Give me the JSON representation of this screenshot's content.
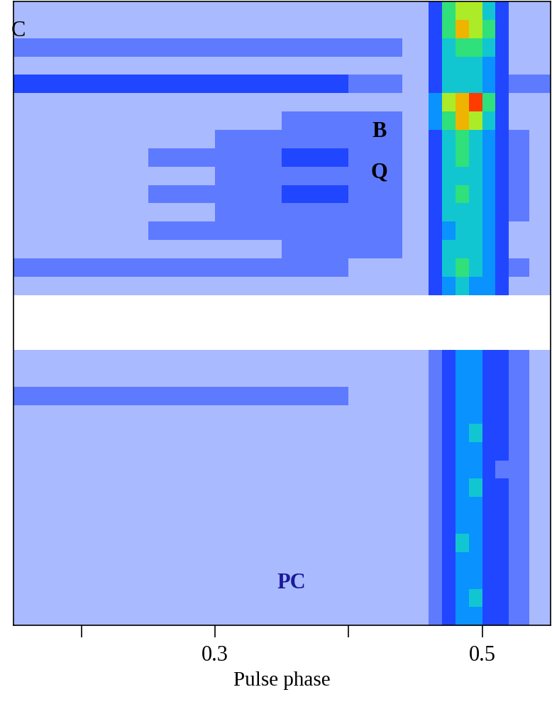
{
  "chart_data": {
    "type": "heatmap",
    "x_label": "Pulse phase",
    "xlim": [
      0.149,
      0.551
    ],
    "xticks": [
      {
        "value": 0.2,
        "label": null
      },
      0.3,
      {
        "value": 0.4,
        "label": null
      },
      0.5
    ],
    "tick_labels": "x",
    "annotations": [
      "C",
      "B",
      "Q",
      "PC"
    ],
    "phase_edges": [
      0.149,
      0.2,
      0.25,
      0.3,
      0.35,
      0.4,
      0.44,
      0.46,
      0.47,
      0.48,
      0.49,
      0.5,
      0.51,
      0.52,
      0.535,
      0.551
    ],
    "color_range": [
      0,
      10
    ],
    "cells": [
      [
        1,
        1,
        1,
        1,
        1,
        1,
        1,
        3,
        6,
        7,
        7,
        5,
        3,
        1,
        1
      ],
      [
        1,
        1,
        1,
        1,
        1,
        1,
        1,
        3,
        6,
        8,
        7,
        6,
        3,
        1,
        1
      ],
      [
        2,
        2,
        2,
        2,
        2,
        2,
        1,
        3,
        5,
        6,
        6,
        5,
        3,
        1,
        1
      ],
      [
        1,
        1,
        1,
        1,
        1,
        1,
        1,
        3,
        5,
        5,
        5,
        4,
        3,
        1,
        1
      ],
      [
        3,
        3,
        3,
        3,
        3,
        2,
        1,
        3,
        5,
        5,
        5,
        4,
        3,
        2,
        2
      ],
      [
        1,
        1,
        1,
        1,
        1,
        1,
        1,
        4,
        7,
        8,
        9,
        6,
        3,
        1,
        1
      ],
      [
        1,
        1,
        1,
        1,
        2,
        2,
        1,
        4,
        6,
        8,
        7,
        5,
        3,
        1,
        1
      ],
      [
        1,
        1,
        1,
        2,
        2,
        2,
        1,
        3,
        5,
        6,
        5,
        4,
        3,
        2,
        1
      ],
      [
        1,
        1,
        2,
        2,
        3,
        2,
        1,
        3,
        5,
        6,
        5,
        4,
        3,
        2,
        1
      ],
      [
        1,
        1,
        1,
        2,
        2,
        2,
        1,
        3,
        5,
        5,
        5,
        4,
        3,
        2,
        1
      ],
      [
        1,
        1,
        2,
        2,
        3,
        2,
        1,
        3,
        5,
        6,
        5,
        4,
        3,
        2,
        1
      ],
      [
        1,
        1,
        1,
        2,
        2,
        2,
        1,
        3,
        5,
        5,
        5,
        4,
        3,
        2,
        1
      ],
      [
        1,
        1,
        2,
        2,
        2,
        2,
        1,
        3,
        4,
        5,
        5,
        4,
        3,
        1,
        1
      ],
      [
        1,
        1,
        1,
        1,
        2,
        2,
        1,
        3,
        5,
        5,
        5,
        4,
        3,
        1,
        1
      ],
      [
        2,
        2,
        2,
        2,
        2,
        1,
        1,
        3,
        5,
        6,
        5,
        4,
        3,
        2,
        1
      ],
      [
        1,
        1,
        1,
        1,
        1,
        1,
        1,
        3,
        4,
        5,
        4,
        4,
        3,
        1,
        1
      ],
      null,
      null,
      null,
      [
        1,
        1,
        1,
        1,
        1,
        1,
        1,
        2,
        3,
        4,
        4,
        3,
        3,
        2,
        1
      ],
      [
        1,
        1,
        1,
        1,
        1,
        1,
        1,
        2,
        3,
        4,
        4,
        3,
        3,
        2,
        1
      ],
      [
        2,
        2,
        2,
        2,
        2,
        1,
        1,
        2,
        3,
        4,
        4,
        3,
        3,
        2,
        1
      ],
      [
        1,
        1,
        1,
        1,
        1,
        1,
        1,
        2,
        3,
        4,
        4,
        3,
        3,
        2,
        1
      ],
      [
        1,
        1,
        1,
        1,
        1,
        1,
        1,
        2,
        3,
        4,
        5,
        3,
        3,
        2,
        1
      ],
      [
        1,
        1,
        1,
        1,
        1,
        1,
        1,
        2,
        3,
        4,
        4,
        3,
        3,
        2,
        1
      ],
      [
        1,
        1,
        1,
        1,
        1,
        1,
        1,
        2,
        3,
        4,
        4,
        3,
        2,
        2,
        1
      ],
      [
        1,
        1,
        1,
        1,
        1,
        1,
        1,
        2,
        3,
        4,
        5,
        3,
        3,
        2,
        1
      ],
      [
        1,
        1,
        1,
        1,
        1,
        1,
        1,
        2,
        3,
        4,
        4,
        3,
        3,
        2,
        1
      ],
      [
        1,
        1,
        1,
        1,
        1,
        1,
        1,
        2,
        3,
        4,
        4,
        3,
        3,
        2,
        1
      ],
      [
        1,
        1,
        1,
        1,
        1,
        1,
        1,
        2,
        3,
        5,
        4,
        3,
        3,
        2,
        1
      ],
      [
        1,
        1,
        1,
        1,
        1,
        1,
        1,
        2,
        3,
        4,
        4,
        3,
        3,
        2,
        1
      ],
      [
        1,
        1,
        1,
        1,
        1,
        1,
        1,
        2,
        3,
        4,
        4,
        3,
        3,
        2,
        1
      ],
      [
        1,
        1,
        1,
        1,
        1,
        1,
        1,
        2,
        3,
        4,
        5,
        3,
        3,
        2,
        1
      ],
      [
        1,
        1,
        1,
        1,
        1,
        1,
        1,
        2,
        3,
        4,
        4,
        3,
        3,
        2,
        1
      ]
    ]
  }
}
